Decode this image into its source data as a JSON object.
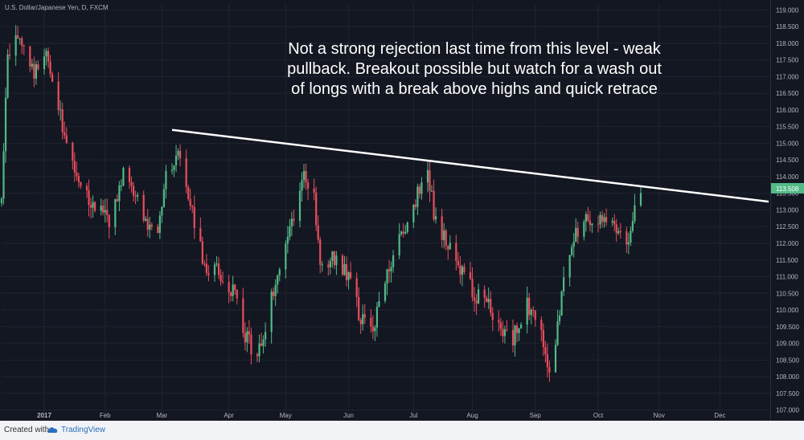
{
  "chart_data": {
    "type": "candlestick",
    "title": "U.S. Dollar/Japanese Yen, D, FXCM",
    "annotation": [
      "Not a strong rejection last time from this level - weak",
      "pullback.  Breakout possible but watch for a wash out",
      "of longs with a break above highs and quick retrace"
    ],
    "price_label": "113.508",
    "ylim": [
      106.75,
      119.2
    ],
    "y_ticks": [
      "107.000",
      "107.500",
      "108.000",
      "108.500",
      "109.000",
      "109.500",
      "110.000",
      "110.500",
      "111.000",
      "111.500",
      "112.000",
      "112.500",
      "113.000",
      "113.500",
      "114.000",
      "114.500",
      "115.000",
      "115.500",
      "116.000",
      "116.500",
      "117.000",
      "117.500",
      "118.000",
      "118.500",
      "119.000"
    ],
    "x_labels": [
      "2017",
      "Feb",
      "Mar",
      "Apr",
      "May",
      "Jun",
      "Jul",
      "Aug",
      "Sep",
      "Oct",
      "Nov",
      "Dec"
    ],
    "x_label_dates": [
      "2017-01-02",
      "2017-02-01",
      "2017-03-01",
      "2017-04-03",
      "2017-05-01",
      "2017-06-01",
      "2017-07-03",
      "2017-08-01",
      "2017-09-01",
      "2017-10-02",
      "2017-11-01",
      "2017-12-01"
    ],
    "x_start": "2016-12-12",
    "x_end": "2017-12-25",
    "trendline": [
      {
        "date": "2017-03-06",
        "value": 115.4
      },
      {
        "date": "2017-12-25",
        "value": 113.25
      }
    ],
    "close_path": [
      {
        "date": "2016-12-12",
        "value": 113.5
      },
      {
        "date": "2016-12-15",
        "value": 117.8
      },
      {
        "date": "2016-12-20",
        "value": 118.3
      },
      {
        "date": "2016-12-28",
        "value": 117.2
      },
      {
        "date": "2017-01-04",
        "value": 117.6
      },
      {
        "date": "2017-01-10",
        "value": 115.8
      },
      {
        "date": "2017-01-16",
        "value": 114.3
      },
      {
        "date": "2017-01-25",
        "value": 113.3
      },
      {
        "date": "2017-02-03",
        "value": 112.6
      },
      {
        "date": "2017-02-10",
        "value": 114.0
      },
      {
        "date": "2017-02-14",
        "value": 113.8
      },
      {
        "date": "2017-02-21",
        "value": 112.5
      },
      {
        "date": "2017-02-27",
        "value": 112.2
      },
      {
        "date": "2017-03-03",
        "value": 114.0
      },
      {
        "date": "2017-03-10",
        "value": 114.8
      },
      {
        "date": "2017-03-15",
        "value": 113.3
      },
      {
        "date": "2017-03-22",
        "value": 111.2
      },
      {
        "date": "2017-03-28",
        "value": 111.3
      },
      {
        "date": "2017-04-05",
        "value": 110.6
      },
      {
        "date": "2017-04-11",
        "value": 109.2
      },
      {
        "date": "2017-04-17",
        "value": 108.6
      },
      {
        "date": "2017-04-24",
        "value": 110.3
      },
      {
        "date": "2017-05-01",
        "value": 112.0
      },
      {
        "date": "2017-05-10",
        "value": 114.1
      },
      {
        "date": "2017-05-15",
        "value": 113.3
      },
      {
        "date": "2017-05-18",
        "value": 111.4
      },
      {
        "date": "2017-05-25",
        "value": 111.6
      },
      {
        "date": "2017-06-01",
        "value": 111.1
      },
      {
        "date": "2017-06-07",
        "value": 109.7
      },
      {
        "date": "2017-06-14",
        "value": 109.6
      },
      {
        "date": "2017-06-21",
        "value": 111.3
      },
      {
        "date": "2017-06-28",
        "value": 112.4
      },
      {
        "date": "2017-07-04",
        "value": 113.3
      },
      {
        "date": "2017-07-10",
        "value": 114.1
      },
      {
        "date": "2017-07-14",
        "value": 112.6
      },
      {
        "date": "2017-07-20",
        "value": 111.9
      },
      {
        "date": "2017-07-27",
        "value": 111.1
      },
      {
        "date": "2017-08-02",
        "value": 110.5
      },
      {
        "date": "2017-08-08",
        "value": 110.3
      },
      {
        "date": "2017-08-14",
        "value": 109.4
      },
      {
        "date": "2017-08-21",
        "value": 109.2
      },
      {
        "date": "2017-08-28",
        "value": 110.1
      },
      {
        "date": "2017-09-04",
        "value": 109.4
      },
      {
        "date": "2017-09-08",
        "value": 107.9
      },
      {
        "date": "2017-09-12",
        "value": 109.6
      },
      {
        "date": "2017-09-15",
        "value": 110.9
      },
      {
        "date": "2017-09-21",
        "value": 112.2
      },
      {
        "date": "2017-09-28",
        "value": 112.8
      },
      {
        "date": "2017-10-06",
        "value": 112.7
      },
      {
        "date": "2017-10-13",
        "value": 112.3
      },
      {
        "date": "2017-10-16",
        "value": 111.9
      },
      {
        "date": "2017-10-19",
        "value": 112.9
      },
      {
        "date": "2017-10-23",
        "value": 113.508
      }
    ],
    "colors": {
      "up": "#53b987",
      "down": "#eb4d5c",
      "background": "#131722",
      "grid": "#1f2430",
      "axis_text": "#b2b5be",
      "line": "#ffffff",
      "price_tag": "#53b987"
    }
  },
  "footer": {
    "created_with": "Created with",
    "brand": "TradingView"
  }
}
